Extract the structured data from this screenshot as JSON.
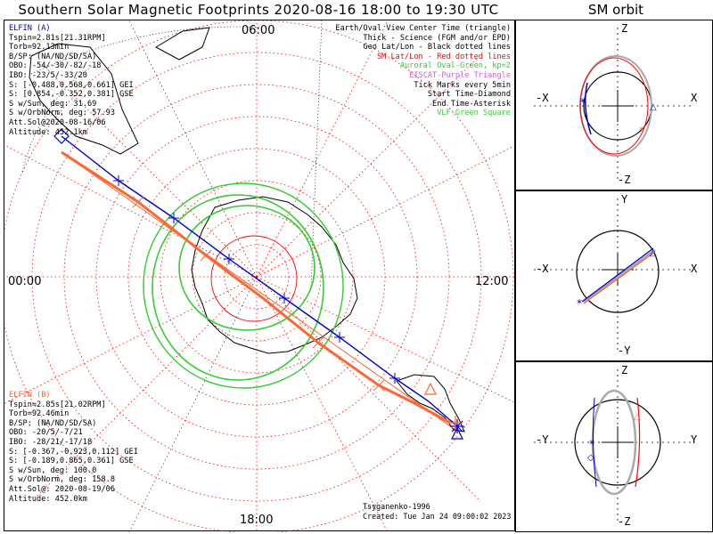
{
  "title": "Southern Solar Magnetic Footprints 2020-08-16 18:00 to 19:30 UTC",
  "sm_title": "SM orbit",
  "time_labels": {
    "top": "06:00",
    "left": "00:00",
    "right": "12:00",
    "bottom": "18:00"
  },
  "legend": [
    {
      "text": "Earth/Oval View Center Time (triangle)",
      "color": "#000000"
    },
    {
      "text": "Thick - Science (FGM and/or EPD)",
      "color": "#000000"
    },
    {
      "text": "Geo Lat/Lon - Black dotted lines",
      "color": "#000000"
    },
    {
      "text": "SM Lat/Lon - Red dotted lines",
      "color": "#ff0000"
    },
    {
      "text": "Auroral Oval-Green, kp=2",
      "color": "#33cc33"
    },
    {
      "text": "EISCAT-Purple Triangle",
      "color": "#cc66cc"
    },
    {
      "text": "Tick Marks every 5min",
      "color": "#000000"
    },
    {
      "text": "Start Time-Diamond",
      "color": "#000000"
    },
    {
      "text": "End Time-Asterisk",
      "color": "#000000"
    },
    {
      "text": "VLF-Green Square",
      "color": "#33cc33"
    }
  ],
  "elfin_a": {
    "name": "ELFIN (A)",
    "color": "#0000cc",
    "lines": [
      "Tspin=2.81s[21.31RPM]",
      "Torb=92.13min",
      "B/SP: (NA/ND/SD/SA)",
      "OBO: -54/-30/-82/-18",
      "IBO: -23/5/-33/20",
      "S: [-0.488,0.568,0.661] GEI",
      "S: [0.854,-0.352,0.381] GSE",
      "S w/Sun, deg: 31.69",
      "S w/OrbNorm, deg: 57.93",
      "Att.Sol@2020-08-16/06",
      "Altitude: 452.1km"
    ]
  },
  "elfin_b": {
    "name": "ELFIN (B)",
    "color": "#ff6633",
    "lines": [
      "Tspin=2.85s[21.02RPM]",
      "Torb=92.46min",
      "B/SP: (NA/ND/SD/SA)",
      "OBO: -20/5/-7/21",
      "IBO: -28/21/-17/18",
      "S: [-0.367,-0.923,0.112] GEI",
      "S: [-0.189,0.865,0.361] GSE",
      "S w/Sun, deg: 100.0",
      "S w/OrbNorm, deg: 158.8",
      "Att.Sol@: 2020-08-19/06",
      "Altitude: 452.0km"
    ]
  },
  "credit": {
    "model": "Tsyganenko-1996",
    "created": "Created: Tue Jan 24 09:00:02 2023"
  },
  "sm_panels": [
    {
      "top": "Z",
      "bottom": "-Z",
      "left": "-X",
      "right": "X"
    },
    {
      "top": "Y",
      "bottom": "-Y",
      "left": "-X",
      "right": "X"
    },
    {
      "top": "Z",
      "bottom": "-Z",
      "left": "-Y",
      "right": "Y"
    }
  ],
  "colors": {
    "elfin_a": "#0000cc",
    "elfin_b": "#ff6633",
    "oval": "#33cc33",
    "sm_grid": "#ff0000",
    "geo_grid": "#000000"
  }
}
